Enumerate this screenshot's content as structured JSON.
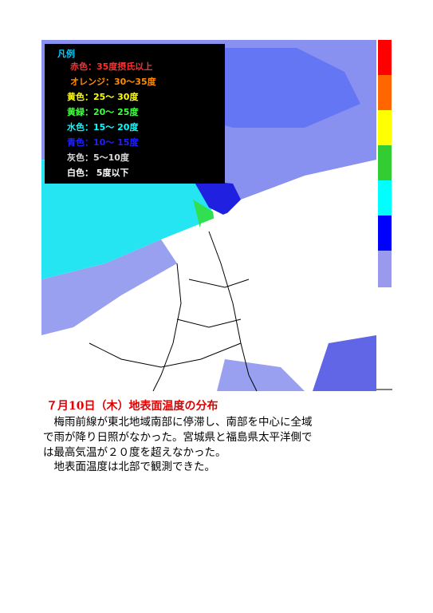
{
  "legend": {
    "title": "凡例",
    "items": [
      {
        "text": "赤色：35度摂氏以上",
        "color": "#ff3030"
      },
      {
        "text": "オレンジ：30～35度",
        "color": "#ff8c00"
      },
      {
        "text": "黄色：25～ 30度",
        "color": "#ffff00"
      },
      {
        "text": "黄緑：20～ 25度",
        "color": "#40ff40"
      },
      {
        "text": "水色：15～ 20度",
        "color": "#00ffff"
      },
      {
        "text": "青色：10～ 15度",
        "color": "#2020ff"
      },
      {
        "text": "灰色：5～10度",
        "color": "#d8d8d8"
      },
      {
        "text": "白色： 5度以下",
        "color": "#ffffff"
      }
    ]
  },
  "caption": {
    "title": "７月10日（木）地表面温度の分布",
    "lines": [
      "　梅雨前線が東北地域南部に停滞し、南部を中心に全域",
      "で雨が降り日照がなかった。宮城県と福島県太平洋側で",
      "は最高気温が２０度を超えなかった。",
      "　地表面温度は北部で観測できた。"
    ]
  }
}
